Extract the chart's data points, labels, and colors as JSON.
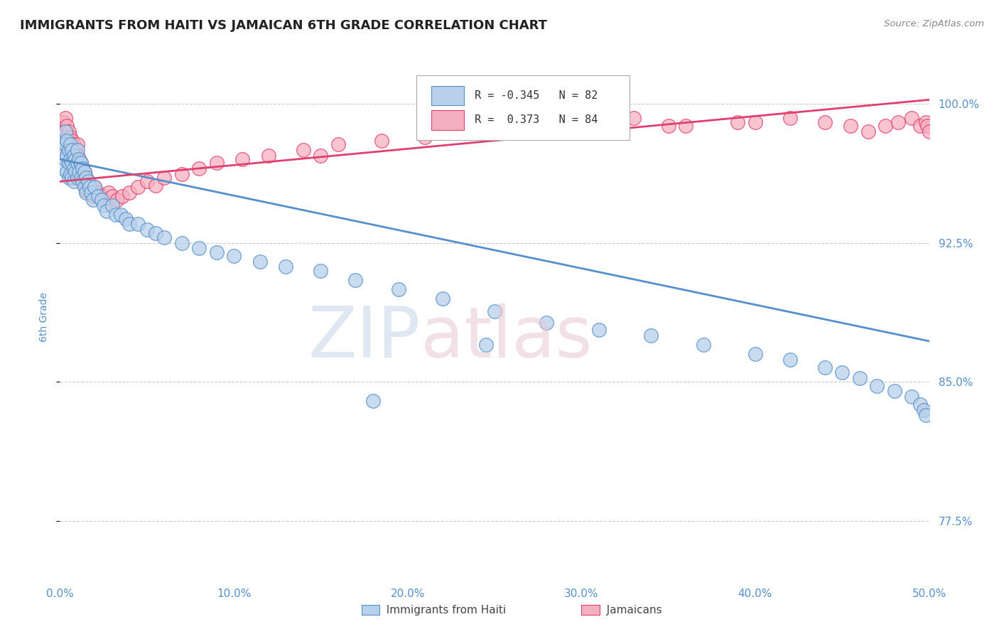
{
  "title": "IMMIGRANTS FROM HAITI VS JAMAICAN 6TH GRADE CORRELATION CHART",
  "source_text": "Source: ZipAtlas.com",
  "ylabel": "6th Grade",
  "xlim": [
    0.0,
    0.5
  ],
  "ylim": [
    0.745,
    1.025
  ],
  "xtick_labels": [
    "0.0%",
    "10.0%",
    "20.0%",
    "30.0%",
    "40.0%",
    "50.0%"
  ],
  "xtick_values": [
    0.0,
    0.1,
    0.2,
    0.3,
    0.4,
    0.5
  ],
  "ytick_labels": [
    "77.5%",
    "85.0%",
    "92.5%",
    "100.0%"
  ],
  "ytick_values": [
    0.775,
    0.85,
    0.925,
    1.0
  ],
  "haiti_R": -0.345,
  "haiti_N": 82,
  "jamaican_R": 0.373,
  "jamaican_N": 84,
  "haiti_color": "#b8d0ea",
  "jamaican_color": "#f5b0bf",
  "haiti_line_color": "#5590cc",
  "jamaican_line_color": "#e04070",
  "grid_color": "#cccccc",
  "right_tick_color": "#5590cc",
  "bottom_tick_color": "#5590cc",
  "title_color": "#222222",
  "haiti_x": [
    0.001,
    0.002,
    0.002,
    0.003,
    0.003,
    0.003,
    0.004,
    0.004,
    0.004,
    0.005,
    0.005,
    0.005,
    0.006,
    0.006,
    0.006,
    0.007,
    0.007,
    0.007,
    0.008,
    0.008,
    0.008,
    0.009,
    0.009,
    0.01,
    0.01,
    0.01,
    0.011,
    0.011,
    0.012,
    0.012,
    0.013,
    0.013,
    0.014,
    0.014,
    0.015,
    0.015,
    0.016,
    0.017,
    0.018,
    0.019,
    0.02,
    0.022,
    0.024,
    0.025,
    0.027,
    0.03,
    0.032,
    0.035,
    0.038,
    0.04,
    0.045,
    0.05,
    0.055,
    0.06,
    0.07,
    0.08,
    0.09,
    0.1,
    0.115,
    0.13,
    0.15,
    0.17,
    0.195,
    0.22,
    0.25,
    0.28,
    0.31,
    0.34,
    0.37,
    0.4,
    0.42,
    0.44,
    0.45,
    0.46,
    0.47,
    0.48,
    0.49,
    0.495,
    0.497,
    0.498,
    0.245,
    0.18
  ],
  "haiti_y": [
    0.98,
    0.975,
    0.965,
    0.985,
    0.978,
    0.97,
    0.98,
    0.972,
    0.963,
    0.975,
    0.968,
    0.96,
    0.978,
    0.97,
    0.962,
    0.975,
    0.968,
    0.96,
    0.972,
    0.965,
    0.958,
    0.97,
    0.963,
    0.975,
    0.968,
    0.96,
    0.97,
    0.963,
    0.968,
    0.96,
    0.965,
    0.958,
    0.963,
    0.955,
    0.96,
    0.952,
    0.958,
    0.955,
    0.952,
    0.948,
    0.955,
    0.95,
    0.948,
    0.945,
    0.942,
    0.945,
    0.94,
    0.94,
    0.938,
    0.935,
    0.935,
    0.932,
    0.93,
    0.928,
    0.925,
    0.922,
    0.92,
    0.918,
    0.915,
    0.912,
    0.91,
    0.905,
    0.9,
    0.895,
    0.888,
    0.882,
    0.878,
    0.875,
    0.87,
    0.865,
    0.862,
    0.858,
    0.855,
    0.852,
    0.848,
    0.845,
    0.842,
    0.838,
    0.835,
    0.832,
    0.87,
    0.84
  ],
  "jamaican_x": [
    0.001,
    0.001,
    0.002,
    0.002,
    0.003,
    0.003,
    0.003,
    0.004,
    0.004,
    0.004,
    0.005,
    0.005,
    0.005,
    0.006,
    0.006,
    0.006,
    0.007,
    0.007,
    0.007,
    0.008,
    0.008,
    0.008,
    0.009,
    0.009,
    0.01,
    0.01,
    0.01,
    0.011,
    0.011,
    0.012,
    0.012,
    0.013,
    0.013,
    0.014,
    0.014,
    0.015,
    0.015,
    0.016,
    0.017,
    0.018,
    0.019,
    0.02,
    0.022,
    0.024,
    0.025,
    0.028,
    0.03,
    0.033,
    0.036,
    0.04,
    0.045,
    0.05,
    0.055,
    0.06,
    0.07,
    0.08,
    0.09,
    0.105,
    0.12,
    0.14,
    0.16,
    0.185,
    0.21,
    0.24,
    0.27,
    0.3,
    0.33,
    0.36,
    0.39,
    0.42,
    0.44,
    0.455,
    0.465,
    0.475,
    0.482,
    0.49,
    0.495,
    0.498,
    0.499,
    0.5,
    0.15,
    0.28,
    0.35,
    0.4
  ],
  "jamaican_y": [
    0.988,
    0.982,
    0.99,
    0.985,
    0.992,
    0.985,
    0.978,
    0.988,
    0.982,
    0.975,
    0.985,
    0.978,
    0.972,
    0.982,
    0.975,
    0.968,
    0.98,
    0.972,
    0.965,
    0.978,
    0.97,
    0.963,
    0.975,
    0.968,
    0.978,
    0.972,
    0.965,
    0.97,
    0.963,
    0.968,
    0.962,
    0.965,
    0.958,
    0.963,
    0.956,
    0.96,
    0.953,
    0.958,
    0.955,
    0.952,
    0.95,
    0.955,
    0.952,
    0.95,
    0.948,
    0.952,
    0.95,
    0.948,
    0.95,
    0.952,
    0.955,
    0.958,
    0.956,
    0.96,
    0.962,
    0.965,
    0.968,
    0.97,
    0.972,
    0.975,
    0.978,
    0.98,
    0.982,
    0.985,
    0.988,
    0.99,
    0.992,
    0.988,
    0.99,
    0.992,
    0.99,
    0.988,
    0.985,
    0.988,
    0.99,
    0.992,
    0.988,
    0.99,
    0.988,
    0.985,
    0.972,
    0.985,
    0.988,
    0.99
  ]
}
